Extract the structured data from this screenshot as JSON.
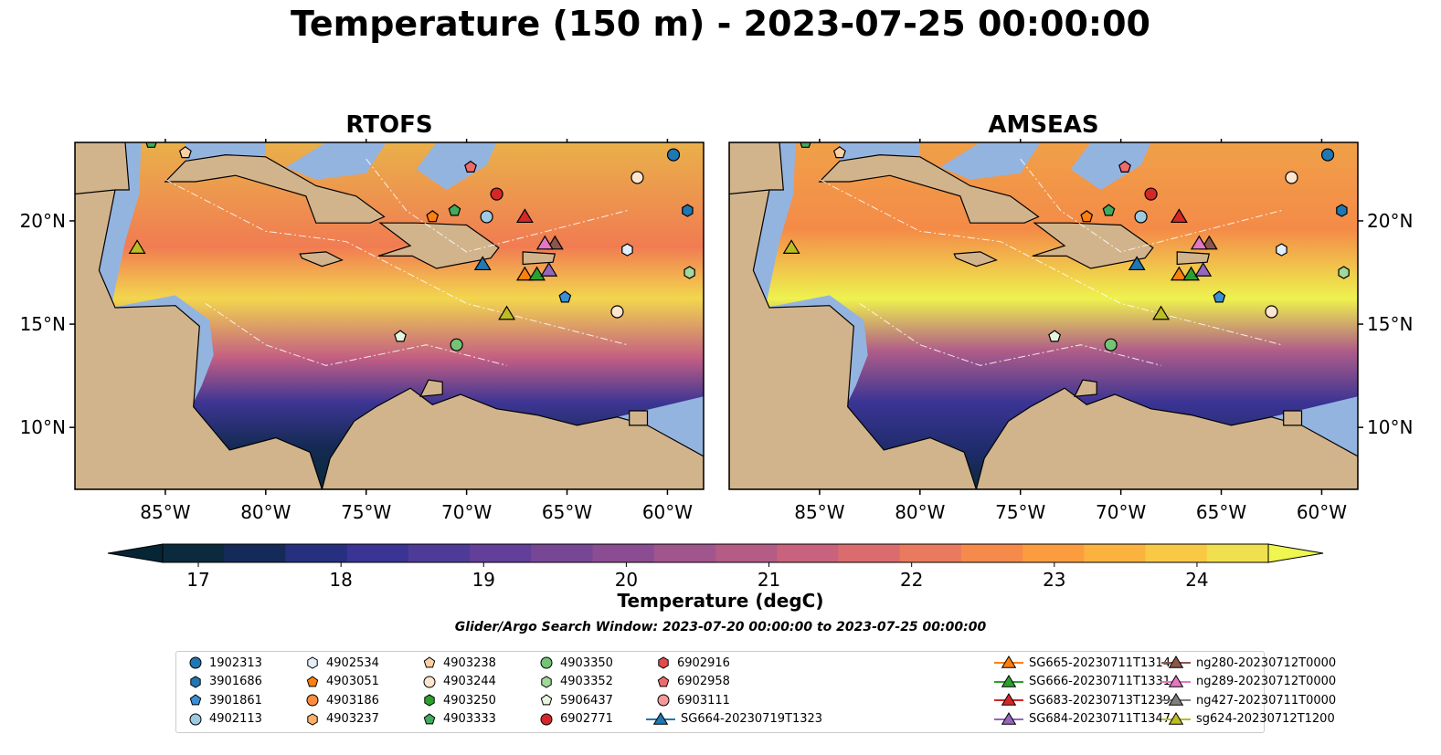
{
  "title": "Temperature (150 m) - 2023-07-25 00:00:00",
  "panels": [
    {
      "title": "RTOFS"
    },
    {
      "title": "AMSEAS"
    }
  ],
  "map_extent": {
    "lon": [
      -89.5,
      -58.2
    ],
    "lat": [
      7.0,
      23.8
    ]
  },
  "lon_ticks": [
    "85°W",
    "80°W",
    "75°W",
    "70°W",
    "65°W",
    "60°W"
  ],
  "lon_tick_values": [
    -85,
    -80,
    -75,
    -70,
    -65,
    -60
  ],
  "lat_ticks": [
    "20°N",
    "15°N",
    "10°N"
  ],
  "lat_tick_values": [
    20,
    15,
    10
  ],
  "colorbar": {
    "label": "Temperature (degC)",
    "ticks": [
      "17",
      "18",
      "19",
      "20",
      "21",
      "22",
      "23",
      "24"
    ],
    "tick_values": [
      17,
      18,
      19,
      20,
      21,
      22,
      23,
      24
    ],
    "min": 16.75,
    "max": 24.5,
    "step": 0.5,
    "colors": [
      "#0b2a3d",
      "#142a58",
      "#26307f",
      "#3a3494",
      "#4e3b98",
      "#623f99",
      "#774796",
      "#8b4d92",
      "#a0558d",
      "#b45b86",
      "#c9627c",
      "#db6c6e",
      "#ea7a5d",
      "#f58a4a",
      "#fb9d3e",
      "#fbb23e",
      "#f9c945",
      "#f0e04f"
    ],
    "extend_low": "#062535",
    "extend_high": "#eef64f"
  },
  "search_window": "Glider/Argo Search Window: 2023-07-20 00:00:00 to 2023-07-25 00:00:00",
  "colors": {
    "land": "#d2b48c",
    "shallow": "#94b4e0"
  },
  "legend": [
    {
      "label": "1902313",
      "marker": "circle",
      "color": "#1f77b4"
    },
    {
      "label": "3901686",
      "marker": "hexagon",
      "color": "#1f77b4"
    },
    {
      "label": "3901861",
      "marker": "pentagon",
      "color": "#3a8fd6"
    },
    {
      "label": "4902113",
      "marker": "circle",
      "color": "#9ecae1"
    },
    {
      "label": "4902534",
      "marker": "hexagon",
      "color": "#e1effa"
    },
    {
      "label": "4903051",
      "marker": "pentagon",
      "color": "#ff7f0e"
    },
    {
      "label": "4903186",
      "marker": "circle",
      "color": "#fd8d3c"
    },
    {
      "label": "4903237",
      "marker": "hexagon",
      "color": "#fdae6b"
    },
    {
      "label": "4903238",
      "marker": "pentagon",
      "color": "#fdd0a2"
    },
    {
      "label": "4903244",
      "marker": "circle",
      "color": "#fee6ce"
    },
    {
      "label": "4903250",
      "marker": "hexagon",
      "color": "#2ca02c"
    },
    {
      "label": "4903333",
      "marker": "pentagon",
      "color": "#41ab5d"
    },
    {
      "label": "4903350",
      "marker": "circle",
      "color": "#74c476"
    },
    {
      "label": "4903352",
      "marker": "hexagon",
      "color": "#a1d99b"
    },
    {
      "label": "5906437",
      "marker": "pentagon",
      "color": "#e5f5e0"
    },
    {
      "label": "6902771",
      "marker": "circle",
      "color": "#d62728"
    },
    {
      "label": "6902916",
      "marker": "hexagon",
      "color": "#e34a4a"
    },
    {
      "label": "6902958",
      "marker": "pentagon",
      "color": "#ef6b6b"
    },
    {
      "label": "6903111",
      "marker": "circle",
      "color": "#f59a9a"
    },
    {
      "label": "SG664-20230719T1323",
      "marker": "triangle-line",
      "color": "#1f77b4"
    },
    {
      "label": "SG665-20230711T1314",
      "marker": "triangle-line",
      "color": "#ff7f0e"
    },
    {
      "label": "SG666-20230711T1331",
      "marker": "triangle-line",
      "color": "#2ca02c"
    },
    {
      "label": "SG683-20230713T1239",
      "marker": "triangle-line",
      "color": "#d62728"
    },
    {
      "label": "SG684-20230711T1347",
      "marker": "triangle-line",
      "color": "#9467bd"
    },
    {
      "label": "ng280-20230712T0000",
      "marker": "triangle-line",
      "color": "#8c564b"
    },
    {
      "label": "ng289-20230712T0000",
      "marker": "triangle-line",
      "color": "#e377c2"
    },
    {
      "label": "ng427-20230711T0000",
      "marker": "triangle-line",
      "color": "#7f7f7f"
    },
    {
      "label": "sg624-20230712T1200",
      "marker": "triangle-line",
      "color": "#bcbd22"
    }
  ],
  "observations": [
    {
      "id": "1902313",
      "lon": -59.7,
      "lat": 23.2
    },
    {
      "id": "3901686",
      "lon": -59.0,
      "lat": 20.5
    },
    {
      "id": "3901861",
      "lon": -65.1,
      "lat": 16.3
    },
    {
      "id": "4902113",
      "lon": -69.0,
      "lat": 20.2
    },
    {
      "id": "4902534",
      "lon": -62.0,
      "lat": 18.6
    },
    {
      "id": "4903051",
      "lon": -71.7,
      "lat": 20.2
    },
    {
      "id": "4903238",
      "lon": -84.0,
      "lat": 23.3
    },
    {
      "id": "4903244",
      "lon": -61.5,
      "lat": 22.1
    },
    {
      "id": "4903244",
      "lon": -62.5,
      "lat": 15.6
    },
    {
      "id": "4903333",
      "lon": -70.6,
      "lat": 20.5
    },
    {
      "id": "4903333",
      "lon": -85.7,
      "lat": 23.8
    },
    {
      "id": "4903350",
      "lon": -70.5,
      "lat": 14.0
    },
    {
      "id": "4903352",
      "lon": -58.9,
      "lat": 17.5
    },
    {
      "id": "5906437",
      "lon": -73.3,
      "lat": 14.4
    },
    {
      "id": "6902771",
      "lon": -68.5,
      "lat": 21.3
    },
    {
      "id": "6902958",
      "lon": -69.8,
      "lat": 22.6
    },
    {
      "id": "SG664-20230719T1323",
      "lon": -69.2,
      "lat": 17.9
    },
    {
      "id": "SG665-20230711T1314",
      "lon": -67.1,
      "lat": 17.4
    },
    {
      "id": "SG666-20230711T1331",
      "lon": -66.5,
      "lat": 17.4
    },
    {
      "id": "SG683-20230713T1239",
      "lon": -67.1,
      "lat": 20.2
    },
    {
      "id": "SG684-20230711T1347",
      "lon": -65.9,
      "lat": 17.6
    },
    {
      "id": "ng280-20230712T0000",
      "lon": -65.6,
      "lat": 18.9
    },
    {
      "id": "ng289-20230712T0000",
      "lon": -66.1,
      "lat": 18.9
    },
    {
      "id": "sg624-20230712T1200",
      "lon": -68.0,
      "lat": 15.5
    },
    {
      "id": "sg624-20230712T1200",
      "lon": -86.4,
      "lat": 18.7
    }
  ]
}
